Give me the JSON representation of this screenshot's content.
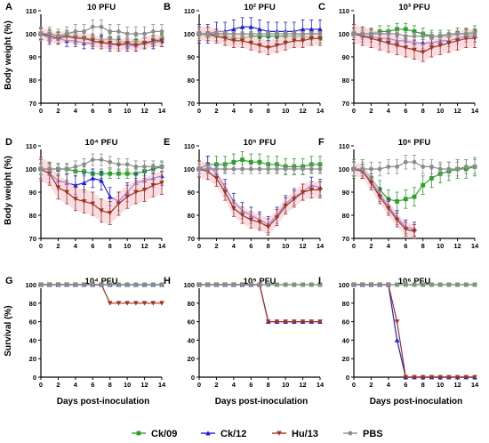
{
  "figure": {
    "colors": {
      "Ck/09": "#2ca02c",
      "Ck/12": "#1f1fd6",
      "Hu/13": "#a0321e",
      "PBS": "#8c8c8c"
    },
    "y_label_weight": "Body weight (%)",
    "y_label_survival": "Survival (%)",
    "x_label": "Days post-inoculation",
    "legend": [
      {
        "name": "Ck/09",
        "color": "#2ca02c",
        "marker": "square"
      },
      {
        "name": "Ck/12",
        "color": "#1f1fd6",
        "marker": "triangle"
      },
      {
        "name": "Hu/13",
        "color": "#a0321e",
        "marker": "triangle-down"
      },
      {
        "name": "PBS",
        "color": "#8c8c8c",
        "marker": "circle"
      }
    ]
  },
  "chart_data": [
    {
      "panel": "A",
      "title": "10 PFU",
      "type": "line",
      "x": [
        0,
        1,
        2,
        3,
        4,
        5,
        6,
        7,
        8,
        9,
        10,
        11,
        12,
        13,
        14
      ],
      "ylim": [
        70,
        110
      ],
      "yticks": [
        70,
        80,
        90,
        100,
        110
      ],
      "xticks": [
        0,
        2,
        4,
        6,
        8,
        10,
        12,
        14
      ],
      "ylabel": "Body weight (%)",
      "series": [
        {
          "name": "Ck/09",
          "values": [
            100,
            100,
            99,
            99,
            99,
            98,
            98,
            97,
            98,
            97,
            96,
            97,
            96,
            97,
            98
          ],
          "err": 2
        },
        {
          "name": "Ck/12",
          "values": [
            100,
            98,
            98,
            97,
            97,
            96,
            96,
            97,
            95,
            96,
            95,
            95,
            96,
            96,
            97
          ],
          "err": 2.5
        },
        {
          "name": "Hu/13",
          "values": [
            100,
            99,
            98,
            99,
            98,
            98,
            97,
            96,
            96,
            95,
            96,
            95,
            96,
            97,
            97
          ],
          "err": 2.5
        },
        {
          "name": "PBS",
          "values": [
            100,
            100,
            99,
            100,
            101,
            101,
            103,
            103,
            101,
            101,
            100,
            100,
            100,
            101,
            101
          ],
          "err": 3
        }
      ]
    },
    {
      "panel": "B",
      "title": "10² PFU",
      "type": "line",
      "x": [
        0,
        1,
        2,
        3,
        4,
        5,
        6,
        7,
        8,
        9,
        10,
        11,
        12,
        13,
        14
      ],
      "ylim": [
        70,
        110
      ],
      "yticks": [
        70,
        80,
        90,
        100,
        110
      ],
      "xticks": [
        0,
        2,
        4,
        6,
        8,
        10,
        12,
        14
      ],
      "series": [
        {
          "name": "Ck/09",
          "values": [
            100,
            99,
            99,
            99,
            98,
            98,
            99,
            99,
            99,
            99,
            99,
            99,
            99,
            98,
            98
          ],
          "err": 2
        },
        {
          "name": "Ck/12",
          "values": [
            100,
            100,
            101,
            101,
            102,
            103,
            103,
            102,
            101,
            101,
            101,
            101,
            102,
            102,
            102
          ],
          "err": 4
        },
        {
          "name": "Hu/13",
          "values": [
            100,
            100,
            99,
            98,
            97,
            97,
            96,
            95,
            94,
            95,
            96,
            97,
            97,
            98,
            98
          ],
          "err": 3
        },
        {
          "name": "PBS",
          "values": [
            100,
            100,
            100,
            100,
            100,
            100,
            100,
            100,
            100,
            100,
            100,
            100,
            100,
            100,
            100
          ],
          "err": 1
        }
      ]
    },
    {
      "panel": "C",
      "title": "10³ PFU",
      "type": "line",
      "x": [
        0,
        1,
        2,
        3,
        4,
        5,
        6,
        7,
        8,
        9,
        10,
        11,
        12,
        13,
        14
      ],
      "ylim": [
        70,
        110
      ],
      "yticks": [
        70,
        80,
        90,
        100,
        110
      ],
      "xticks": [
        0,
        2,
        4,
        6,
        8,
        10,
        12,
        14
      ],
      "series": [
        {
          "name": "Ck/09",
          "values": [
            100,
            100,
            100,
            101,
            101,
            102,
            102,
            101,
            100,
            99,
            99,
            99,
            100,
            100,
            101
          ],
          "err": 2.5
        },
        {
          "name": "Ck/12",
          "values": [
            100,
            99,
            99,
            98,
            98,
            97,
            97,
            96,
            96,
            96,
            97,
            97,
            98,
            99,
            99
          ],
          "err": 2.5
        },
        {
          "name": "Hu/13",
          "values": [
            100,
            99,
            98,
            97,
            96,
            95,
            94,
            93,
            92,
            94,
            95,
            96,
            97,
            98,
            98
          ],
          "err": 4
        },
        {
          "name": "PBS",
          "values": [
            100,
            100,
            100,
            100,
            100,
            100,
            99,
            99,
            99,
            99,
            99,
            100,
            100,
            100,
            100
          ],
          "err": 1.5
        }
      ]
    },
    {
      "panel": "D",
      "title": "10⁴ PFU",
      "type": "line",
      "x": [
        0,
        1,
        2,
        3,
        4,
        5,
        6,
        7,
        8,
        9,
        10,
        11,
        12,
        13,
        14
      ],
      "ylim": [
        70,
        110
      ],
      "yticks": [
        70,
        80,
        90,
        100,
        110
      ],
      "xticks": [
        0,
        2,
        4,
        6,
        8,
        10,
        12,
        14
      ],
      "ylabel": "Body weight (%)",
      "series": [
        {
          "name": "Ck/09",
          "values": [
            100,
            100,
            100,
            100,
            99,
            99,
            98,
            98,
            98,
            98,
            98,
            98,
            99,
            100,
            101
          ],
          "err": 2
        },
        {
          "name": "Ck/12",
          "values": [
            100,
            98,
            95,
            94,
            93,
            94,
            96,
            95,
            88,
            86,
            90,
            94,
            95,
            96,
            97
          ],
          "err": 4
        },
        {
          "name": "Hu/13",
          "values": [
            100,
            98,
            92,
            90,
            87,
            86,
            85,
            82,
            81,
            85,
            88,
            90,
            91,
            93,
            94
          ],
          "err": 5
        },
        {
          "name": "PBS",
          "values": [
            100,
            100,
            100,
            100,
            101,
            102,
            104,
            104,
            103,
            102,
            102,
            101,
            101,
            101,
            101
          ],
          "err": 2.5
        }
      ]
    },
    {
      "panel": "E",
      "title": "10⁵ PFU",
      "type": "line",
      "x": [
        0,
        1,
        2,
        3,
        4,
        5,
        6,
        7,
        8,
        9,
        10,
        11,
        12,
        13,
        14
      ],
      "ylim": [
        70,
        110
      ],
      "yticks": [
        70,
        80,
        90,
        100,
        110
      ],
      "xticks": [
        0,
        2,
        4,
        6,
        8,
        10,
        12,
        14
      ],
      "series": [
        {
          "name": "Ck/09",
          "values": [
            100,
            102,
            102,
            102,
            103,
            104,
            103,
            103,
            102,
            102,
            101,
            101,
            101,
            102,
            102
          ],
          "err": 3.5
        },
        {
          "name": "Ck/12",
          "values": [
            100,
            102,
            98,
            92,
            86,
            82,
            80,
            78,
            76,
            80,
            85,
            88,
            90,
            93,
            92
          ],
          "err": 3.5
        },
        {
          "name": "Hu/13",
          "values": [
            100,
            99,
            96,
            90,
            83,
            80,
            78,
            77,
            75,
            79,
            84,
            87,
            90,
            91,
            91
          ],
          "err": 3.5
        },
        {
          "name": "PBS",
          "values": [
            100,
            100,
            100,
            100,
            100,
            100,
            100,
            100,
            100,
            100,
            100,
            100,
            100,
            100,
            100
          ],
          "err": 2
        }
      ]
    },
    {
      "panel": "F",
      "title": "10⁶ PFU",
      "type": "line",
      "x": [
        0,
        1,
        2,
        3,
        4,
        5,
        6,
        7,
        8,
        9,
        10,
        11,
        12,
        13,
        14
      ],
      "ylim": [
        70,
        110
      ],
      "yticks": [
        70,
        80,
        90,
        100,
        110
      ],
      "xticks": [
        0,
        2,
        4,
        6,
        8,
        10,
        12,
        14
      ],
      "series": [
        {
          "name": "Ck/09",
          "values": [
            100,
            100,
            96,
            91,
            87,
            86,
            87,
            88,
            93,
            96,
            98,
            99,
            100,
            100,
            101
          ],
          "err": 4
        },
        {
          "name": "Ck/12",
          "values": [
            100,
            99,
            95,
            89,
            84,
            79,
            75,
            74,
            null,
            null,
            null,
            null,
            null,
            null,
            null
          ],
          "err": 3
        },
        {
          "name": "Hu/13",
          "values": [
            100,
            99,
            94,
            88,
            83,
            78,
            74,
            73,
            null,
            null,
            null,
            null,
            null,
            null,
            null
          ],
          "err": 3
        },
        {
          "name": "PBS",
          "values": [
            100,
            100,
            100,
            100,
            101,
            101,
            103,
            103,
            101,
            101,
            100,
            100,
            100,
            101,
            101
          ],
          "err": 3
        }
      ]
    },
    {
      "panel": "G",
      "title": "10⁴ PFU",
      "type": "line",
      "x": [
        0,
        1,
        2,
        3,
        4,
        5,
        6,
        7,
        8,
        9,
        10,
        11,
        12,
        13,
        14
      ],
      "ylim": [
        0,
        100
      ],
      "yticks": [
        0,
        20,
        40,
        60,
        80,
        100
      ],
      "xticks": [
        0,
        2,
        4,
        6,
        8,
        10,
        12,
        14
      ],
      "ylabel": "Survival (%)",
      "series": [
        {
          "name": "Ck/09",
          "values": [
            100,
            100,
            100,
            100,
            100,
            100,
            100,
            100,
            100,
            100,
            100,
            100,
            100,
            100,
            100
          ]
        },
        {
          "name": "Ck/12",
          "values": [
            100,
            100,
            100,
            100,
            100,
            100,
            100,
            100,
            100,
            100,
            100,
            100,
            100,
            100,
            100
          ]
        },
        {
          "name": "Hu/13",
          "values": [
            100,
            100,
            100,
            100,
            100,
            100,
            100,
            100,
            80,
            80,
            80,
            80,
            80,
            80,
            80
          ]
        },
        {
          "name": "PBS",
          "values": [
            100,
            100,
            100,
            100,
            100,
            100,
            100,
            100,
            100,
            100,
            100,
            100,
            100,
            100,
            100
          ]
        }
      ]
    },
    {
      "panel": "H",
      "title": "10⁵ PFU",
      "type": "line",
      "x": [
        0,
        1,
        2,
        3,
        4,
        5,
        6,
        7,
        8,
        9,
        10,
        11,
        12,
        13,
        14
      ],
      "ylim": [
        0,
        100
      ],
      "yticks": [
        0,
        20,
        40,
        60,
        80,
        100
      ],
      "xticks": [
        0,
        2,
        4,
        6,
        8,
        10,
        12,
        14
      ],
      "series": [
        {
          "name": "Ck/09",
          "values": [
            100,
            100,
            100,
            100,
            100,
            100,
            100,
            100,
            100,
            100,
            100,
            100,
            100,
            100,
            100
          ]
        },
        {
          "name": "Ck/12",
          "values": [
            100,
            100,
            100,
            100,
            100,
            100,
            100,
            100,
            60,
            60,
            60,
            60,
            60,
            60,
            60
          ]
        },
        {
          "name": "Hu/13",
          "values": [
            100,
            100,
            100,
            100,
            100,
            100,
            100,
            100,
            60,
            60,
            60,
            60,
            60,
            60,
            60
          ]
        },
        {
          "name": "PBS",
          "values": [
            100,
            100,
            100,
            100,
            100,
            100,
            100,
            100,
            100,
            100,
            100,
            100,
            100,
            100,
            100
          ]
        }
      ]
    },
    {
      "panel": "I",
      "title": "10⁶ PFU",
      "type": "line",
      "x": [
        0,
        1,
        2,
        3,
        4,
        5,
        6,
        7,
        8,
        9,
        10,
        11,
        12,
        13,
        14
      ],
      "ylim": [
        0,
        100
      ],
      "yticks": [
        0,
        20,
        40,
        60,
        80,
        100
      ],
      "xticks": [
        0,
        2,
        4,
        6,
        8,
        10,
        12,
        14
      ],
      "series": [
        {
          "name": "Ck/09",
          "values": [
            100,
            100,
            100,
            100,
            100,
            100,
            100,
            100,
            100,
            100,
            100,
            100,
            100,
            100,
            100
          ]
        },
        {
          "name": "Ck/12",
          "values": [
            100,
            100,
            100,
            100,
            100,
            40,
            0,
            0,
            0,
            0,
            0,
            0,
            0,
            0,
            0
          ]
        },
        {
          "name": "Hu/13",
          "values": [
            100,
            100,
            100,
            100,
            100,
            60,
            0,
            0,
            0,
            0,
            0,
            0,
            0,
            0,
            0
          ]
        },
        {
          "name": "PBS",
          "values": [
            100,
            100,
            100,
            100,
            100,
            100,
            100,
            100,
            100,
            100,
            100,
            100,
            100,
            100,
            100
          ]
        }
      ]
    }
  ]
}
